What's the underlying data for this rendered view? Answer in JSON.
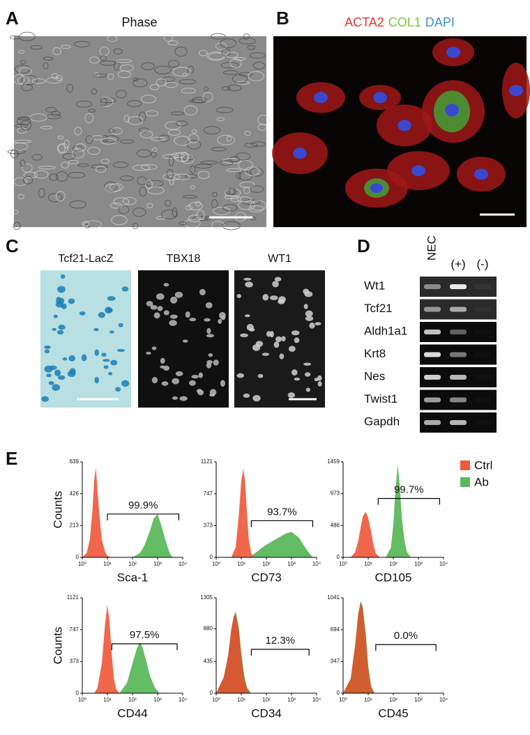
{
  "figure": {
    "panel_a": {
      "letter": "A",
      "title": "Phase"
    },
    "panel_b": {
      "letter": "B",
      "title": [
        {
          "text": "ACTA2",
          "color": "#e8312f"
        },
        {
          "text": "COL1",
          "color": "#7dc242"
        },
        {
          "text": "DAPI",
          "color": "#3b8fd0"
        }
      ]
    },
    "panel_c": {
      "letter": "C",
      "images": [
        "Tcf21-LacZ",
        "TBX18",
        "WT1"
      ]
    },
    "panel_d": {
      "letter": "D",
      "lanes": [
        "NEC",
        "(+)",
        "(-)"
      ],
      "rows": [
        {
          "gene": "Wt1",
          "bands": [
            0.45,
            0.9,
            0.05
          ]
        },
        {
          "gene": "Tcf21",
          "bands": [
            0.5,
            0.6,
            0.03
          ]
        },
        {
          "gene": "Aldh1a1",
          "bands": [
            0.75,
            0.35,
            0.02
          ]
        },
        {
          "gene": "Krt8",
          "bands": [
            0.85,
            0.45,
            0.02
          ]
        },
        {
          "gene": "Nes",
          "bands": [
            0.8,
            0.7,
            0.02
          ]
        },
        {
          "gene": "Twist1",
          "bands": [
            0.6,
            0.5,
            0.02
          ]
        },
        {
          "gene": "Gapdh",
          "bands": [
            0.65,
            0.7,
            0.02
          ]
        }
      ]
    },
    "panel_e": {
      "letter": "E"
    }
  },
  "chart_data": [
    {
      "type": "area",
      "ylabel": "Counts",
      "xlabel": "Sca-1",
      "log_x": true,
      "xlim": [
        1,
        10000
      ],
      "ylim": [
        0,
        639
      ],
      "yticks": [
        0,
        213,
        426,
        639
      ],
      "xticks": [
        {
          "value": 1,
          "label": "10⁰"
        },
        {
          "value": 10,
          "label": "10¹"
        },
        {
          "value": 100,
          "label": "10²"
        },
        {
          "value": 1000,
          "label": "10³"
        },
        {
          "value": 10000,
          "label": "10⁴"
        }
      ],
      "series": [
        {
          "name": "Ab",
          "color": "#5cb85c",
          "x": [
            100,
            200,
            300,
            500,
            700,
            1000,
            1500,
            2000,
            3000,
            4000
          ],
          "values": [
            0,
            30,
            80,
            180,
            260,
            290,
            200,
            120,
            30,
            0
          ]
        },
        {
          "name": "Ctrl",
          "color": "#f05a3c",
          "x": [
            1,
            1.5,
            2,
            2.5,
            3,
            3.5,
            4,
            5,
            6,
            8,
            10,
            15
          ],
          "values": [
            0,
            30,
            120,
            300,
            520,
            600,
            450,
            250,
            120,
            40,
            10,
            0
          ]
        }
      ],
      "gate": {
        "label": "99.9%",
        "x": [
          10,
          7000
        ],
        "y": 290
      }
    },
    {
      "type": "area",
      "xlabel": "CD73",
      "log_x": true,
      "xlim": [
        1,
        10000
      ],
      "ylim": [
        0,
        1121
      ],
      "yticks": [
        0,
        373,
        747,
        1121
      ],
      "xticks": [
        {
          "value": 1,
          "label": "10⁰"
        },
        {
          "value": 10,
          "label": "10¹"
        },
        {
          "value": 100,
          "label": "10²"
        },
        {
          "value": 1000,
          "label": "10³"
        },
        {
          "value": 10000,
          "label": "10⁴"
        }
      ],
      "series": [
        {
          "name": "Ab",
          "color": "#5cb85c",
          "x": [
            20,
            40,
            80,
            150,
            300,
            600,
            1000,
            2000,
            4000,
            7000
          ],
          "values": [
            0,
            60,
            130,
            180,
            230,
            280,
            300,
            230,
            90,
            0
          ]
        },
        {
          "name": "Ctrl",
          "color": "#f05a3c",
          "x": [
            4,
            6,
            8,
            10,
            12,
            14,
            17,
            20,
            25,
            30
          ],
          "values": [
            0,
            120,
            500,
            900,
            1040,
            900,
            500,
            200,
            50,
            0
          ]
        }
      ],
      "gate": {
        "label": "93.7%",
        "x": [
          25,
          7000
        ],
        "y": 430
      }
    },
    {
      "type": "area",
      "xlabel": "CD105",
      "log_x": true,
      "xlim": [
        1,
        10000
      ],
      "ylim": [
        0,
        1459
      ],
      "yticks": [
        0,
        486,
        973,
        1459
      ],
      "xticks": [
        {
          "value": 1,
          "label": "10⁰"
        },
        {
          "value": 10,
          "label": "10¹"
        },
        {
          "value": 100,
          "label": "10²"
        },
        {
          "value": 1000,
          "label": "10³"
        },
        {
          "value": 10000,
          "label": "10⁴"
        }
      ],
      "series": [
        {
          "name": "Ab",
          "color": "#5cb85c",
          "x": [
            50,
            80,
            100,
            120,
            150,
            180,
            220,
            280,
            350,
            500
          ],
          "values": [
            0,
            150,
            500,
            1000,
            1420,
            1100,
            600,
            250,
            80,
            0
          ]
        },
        {
          "name": "Ctrl",
          "color": "#f05a3c",
          "x": [
            2,
            3,
            4,
            5,
            6,
            8,
            10,
            13,
            16,
            20,
            30
          ],
          "values": [
            0,
            80,
            250,
            450,
            620,
            700,
            600,
            400,
            200,
            60,
            0
          ]
        }
      ],
      "gate": {
        "label": "99.7%",
        "x": [
          25,
          7000
        ],
        "y": 900
      }
    },
    {
      "type": "area",
      "ylabel": "Counts",
      "xlabel": "CD44",
      "log_x": true,
      "xlim": [
        1,
        10000
      ],
      "ylim": [
        0,
        1121
      ],
      "yticks": [
        0,
        373,
        747,
        1121
      ],
      "xticks": [
        {
          "value": 1,
          "label": "10⁰"
        },
        {
          "value": 10,
          "label": "10¹"
        },
        {
          "value": 100,
          "label": "10²"
        },
        {
          "value": 1000,
          "label": "10³"
        },
        {
          "value": 10000,
          "label": "10⁴"
        }
      ],
      "series": [
        {
          "name": "Ab",
          "color": "#5cb85c",
          "x": [
            30,
            60,
            100,
            150,
            200,
            250,
            350,
            500,
            800,
            1200
          ],
          "values": [
            0,
            120,
            350,
            530,
            600,
            540,
            380,
            200,
            60,
            0
          ]
        },
        {
          "name": "Ctrl",
          "color": "#f05a3c",
          "x": [
            3,
            4,
            6,
            8,
            10,
            12,
            15,
            18,
            22,
            30
          ],
          "values": [
            0,
            60,
            350,
            800,
            1040,
            850,
            450,
            180,
            50,
            0
          ]
        }
      ],
      "gate": {
        "label": "97.5%",
        "x": [
          15,
          6000
        ],
        "y": 580
      }
    },
    {
      "type": "area",
      "xlabel": "CD34",
      "log_x": true,
      "xlim": [
        1,
        10000
      ],
      "ylim": [
        0,
        1305
      ],
      "yticks": [
        0,
        435,
        880,
        1305
      ],
      "xticks": [
        {
          "value": 1,
          "label": "10⁰"
        },
        {
          "value": 10,
          "label": "10¹"
        },
        {
          "value": 100,
          "label": "10²"
        },
        {
          "value": 1000,
          "label": "10³"
        },
        {
          "value": 10000,
          "label": "10⁴"
        }
      ],
      "series": [
        {
          "name": "Ab",
          "color": "#5cb85c",
          "x": [
            1,
            2,
            3,
            4,
            5,
            6,
            8,
            10,
            13,
            17,
            25
          ],
          "values": [
            0,
            200,
            500,
            850,
            1050,
            1120,
            900,
            550,
            250,
            80,
            0
          ]
        },
        {
          "name": "Ctrl",
          "color": "#e0502e",
          "x": [
            1,
            2,
            3,
            4,
            5,
            6,
            8,
            10,
            13,
            17,
            22
          ],
          "values": [
            0,
            220,
            520,
            880,
            1050,
            1080,
            850,
            500,
            200,
            60,
            0
          ]
        }
      ],
      "gate": {
        "label": "12.3%",
        "x": [
          25,
          5000
        ],
        "y": 600
      }
    },
    {
      "type": "area",
      "xlabel": "CD45",
      "log_x": true,
      "xlim": [
        1,
        10000
      ],
      "ylim": [
        0,
        1041
      ],
      "yticks": [
        0,
        347,
        694,
        1041
      ],
      "xticks": [
        {
          "value": 1,
          "label": "10⁰"
        },
        {
          "value": 10,
          "label": "10¹"
        },
        {
          "value": 100,
          "label": "10²"
        },
        {
          "value": 1000,
          "label": "10³"
        },
        {
          "value": 10000,
          "label": "10⁴"
        }
      ],
      "series": [
        {
          "name": "Ab",
          "color": "#5cb85c",
          "x": [
            1,
            2,
            3,
            4,
            5,
            6,
            8,
            10,
            13,
            18
          ],
          "values": [
            0,
            150,
            500,
            850,
            1000,
            950,
            650,
            300,
            80,
            0
          ]
        },
        {
          "name": "Ctrl",
          "color": "#d9572a",
          "x": [
            1,
            2,
            3,
            4,
            5,
            6,
            8,
            10,
            13,
            17
          ],
          "values": [
            0,
            160,
            520,
            870,
            1000,
            930,
            620,
            280,
            70,
            0
          ]
        }
      ],
      "gate": {
        "label": "0.0%",
        "x": [
          20,
          5000
        ],
        "y": 530
      }
    }
  ]
}
